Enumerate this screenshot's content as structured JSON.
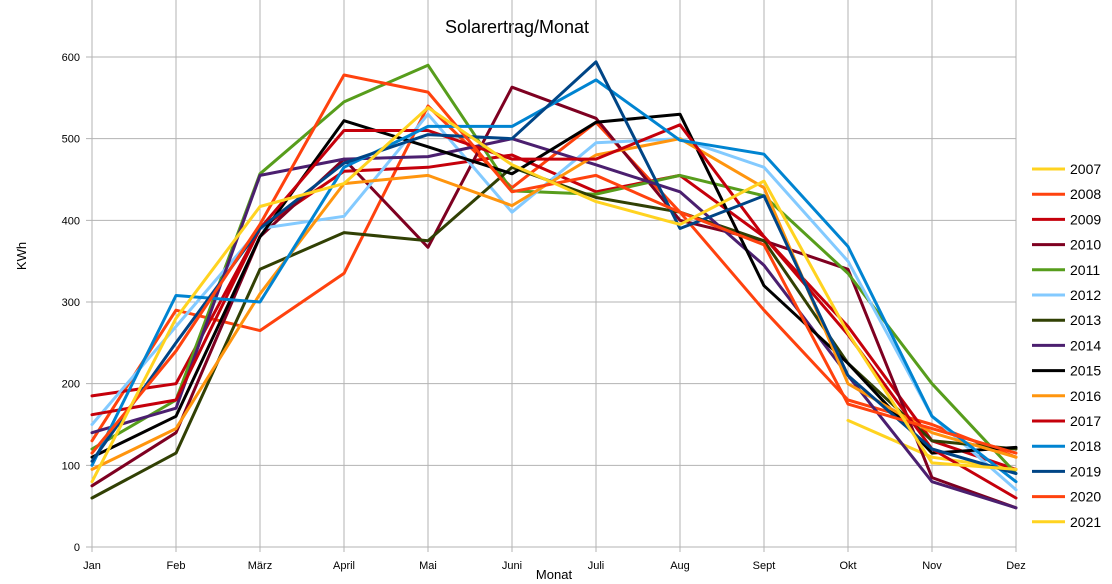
{
  "chart_data": {
    "type": "line",
    "title": "Solarertrag/Monat",
    "xlabel": "Monat",
    "ylabel": "KWh",
    "ylim": [
      0,
      600
    ],
    "yticks": [
      "0",
      "100",
      "200",
      "300",
      "400",
      "500",
      "600"
    ],
    "categories": [
      "Jan",
      "Feb",
      "März",
      "April",
      "Mai",
      "Juni",
      "Juli",
      "Aug",
      "Sept",
      "Okt",
      "Nov",
      "Dez"
    ],
    "grid": true,
    "legend_position": "right",
    "series": [
      {
        "name": "2007",
        "color": "#ffd320",
        "values": [
          null,
          null,
          null,
          null,
          null,
          null,
          null,
          null,
          null,
          155,
          110,
          95
        ]
      },
      {
        "name": "2008",
        "color": "#ff420e",
        "values": [
          130,
          290,
          265,
          335,
          540,
          440,
          520,
          410,
          290,
          180,
          150,
          110
        ]
      },
      {
        "name": "2009",
        "color": "#c5000b",
        "values": [
          185,
          200,
          390,
          460,
          465,
          480,
          435,
          455,
          380,
          270,
          130,
          95
        ]
      },
      {
        "name": "2010",
        "color": "#7e0021",
        "values": [
          75,
          140,
          380,
          475,
          367,
          563,
          525,
          400,
          375,
          340,
          85,
          48
        ]
      },
      {
        "name": "2011",
        "color": "#579d1c",
        "values": [
          120,
          180,
          457,
          545,
          590,
          436,
          432,
          455,
          430,
          335,
          200,
          90
        ]
      },
      {
        "name": "2012",
        "color": "#83caff",
        "values": [
          150,
          270,
          390,
          405,
          530,
          410,
          495,
          500,
          465,
          350,
          160,
          70
        ]
      },
      {
        "name": "2013",
        "color": "#314004",
        "values": [
          60,
          115,
          340,
          385,
          375,
          465,
          428,
          410,
          375,
          225,
          130,
          120
        ]
      },
      {
        "name": "2014",
        "color": "#4b1f6f",
        "values": [
          140,
          170,
          455,
          475,
          478,
          500,
          468,
          435,
          345,
          210,
          80,
          48
        ]
      },
      {
        "name": "2015",
        "color": "#000000",
        "values": [
          110,
          160,
          380,
          522,
          490,
          457,
          520,
          530,
          320,
          225,
          115,
          122
        ]
      },
      {
        "name": "2016",
        "color": "#ff950e",
        "values": [
          95,
          145,
          310,
          445,
          455,
          418,
          480,
          500,
          440,
          200,
          140,
          110
        ]
      },
      {
        "name": "2017",
        "color": "#c5000b",
        "values": [
          162,
          180,
          390,
          510,
          510,
          475,
          475,
          517,
          380,
          260,
          120,
          60
        ]
      },
      {
        "name": "2018",
        "color": "#0084d1",
        "values": [
          100,
          308,
          300,
          465,
          515,
          515,
          572,
          498,
          481,
          368,
          160,
          80
        ]
      },
      {
        "name": "2019",
        "color": "#004586",
        "values": [
          105,
          250,
          390,
          470,
          505,
          500,
          594,
          390,
          430,
          210,
          120,
          90
        ]
      },
      {
        "name": "2020",
        "color": "#ff420e",
        "values": [
          115,
          240,
          395,
          578,
          557,
          435,
          455,
          410,
          370,
          175,
          145,
          115
        ]
      },
      {
        "name": "2021",
        "color": "#ffd320",
        "values": [
          80,
          280,
          417,
          445,
          538,
          468,
          423,
          395,
          448,
          262,
          103,
          95
        ]
      }
    ]
  }
}
